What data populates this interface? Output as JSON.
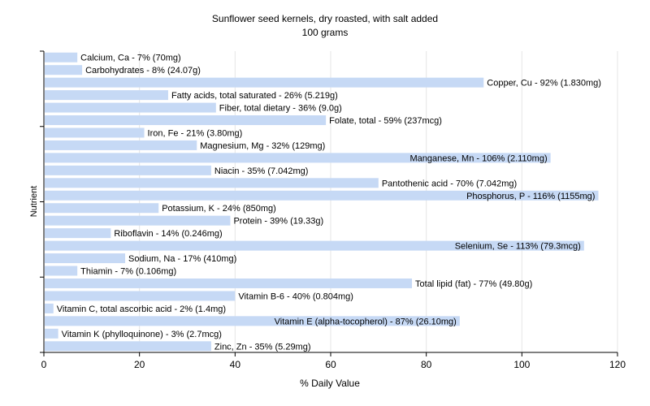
{
  "chart_data": {
    "type": "bar",
    "orientation": "horizontal",
    "title": "Sunflower seed kernels, dry roasted, with salt added",
    "subtitle": "100 grams",
    "xlabel": "% Daily Value",
    "ylabel": "Nutrient",
    "xlim": [
      0,
      120
    ],
    "xticks": [
      0,
      20,
      40,
      60,
      80,
      100,
      120
    ],
    "grid": true,
    "bar_color": "#c6d9f5",
    "grid_color": "#e5e5e5",
    "categories": [
      "Calcium, Ca",
      "Carbohydrates",
      "Copper, Cu",
      "Fatty acids, total saturated",
      "Fiber, total dietary",
      "Folate, total",
      "Iron, Fe",
      "Magnesium, Mg",
      "Manganese, Mn",
      "Niacin",
      "Pantothenic acid",
      "Phosphorus, P",
      "Potassium, K",
      "Protein",
      "Riboflavin",
      "Selenium, Se",
      "Sodium, Na",
      "Thiamin",
      "Total lipid (fat)",
      "Vitamin B-6",
      "Vitamin C, total ascorbic acid",
      "Vitamin E (alpha-tocopherol)",
      "Vitamin K (phylloquinone)",
      "Zinc, Zn"
    ],
    "values": [
      7,
      8,
      92,
      26,
      36,
      59,
      21,
      32,
      106,
      35,
      70,
      116,
      24,
      39,
      14,
      113,
      17,
      7,
      77,
      40,
      2,
      87,
      3,
      35
    ],
    "labels": [
      "Calcium, Ca - 7% (70mg)",
      "Carbohydrates - 8% (24.07g)",
      "Copper, Cu - 92% (1.830mg)",
      "Fatty acids, total saturated - 26% (5.219g)",
      "Fiber, total dietary - 36% (9.0g)",
      "Folate, total - 59% (237mcg)",
      "Iron, Fe - 21% (3.80mg)",
      "Magnesium, Mg - 32% (129mg)",
      "Manganese, Mn - 106% (2.110mg)",
      "Niacin - 35% (7.042mg)",
      "Pantothenic acid - 70% (7.042mg)",
      "Phosphorus, P - 116% (1155mg)",
      "Potassium, K - 24% (850mg)",
      "Protein - 39% (19.33g)",
      "Riboflavin - 14% (0.246mg)",
      "Selenium, Se - 113% (79.3mcg)",
      "Sodium, Na - 17% (410mg)",
      "Thiamin - 7% (0.106mg)",
      "Total lipid (fat) - 77% (49.80g)",
      "Vitamin B-6 - 40% (0.804mg)",
      "Vitamin C, total ascorbic acid - 2% (1.4mg)",
      "Vitamin E (alpha-tocopherol) - 87% (26.10mg)",
      "Vitamin K (phylloquinone) - 3% (2.7mcg)",
      "Zinc, Zn - 35% (5.29mg)"
    ]
  }
}
